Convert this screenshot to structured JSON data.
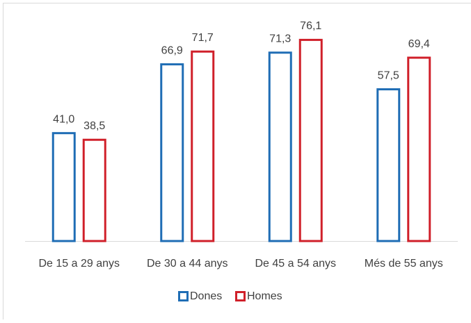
{
  "chart_data": {
    "type": "bar",
    "categories": [
      "De 15 a 29 anys",
      "De 30 a 44 anys",
      "De 45 a 54 anys",
      "Més de 55 anys"
    ],
    "series": [
      {
        "name": "Dones",
        "color": "#1f6db5",
        "values": [
          41.0,
          66.9,
          71.3,
          57.5
        ],
        "value_labels": [
          "41,0",
          "66,9",
          "71,3",
          "57,5"
        ]
      },
      {
        "name": "Homes",
        "color": "#d0202a",
        "values": [
          38.5,
          71.7,
          76.1,
          69.4
        ],
        "value_labels": [
          "38,5",
          "71,7",
          "76,1",
          "69,4"
        ]
      }
    ],
    "ylim": [
      0,
      80
    ]
  }
}
